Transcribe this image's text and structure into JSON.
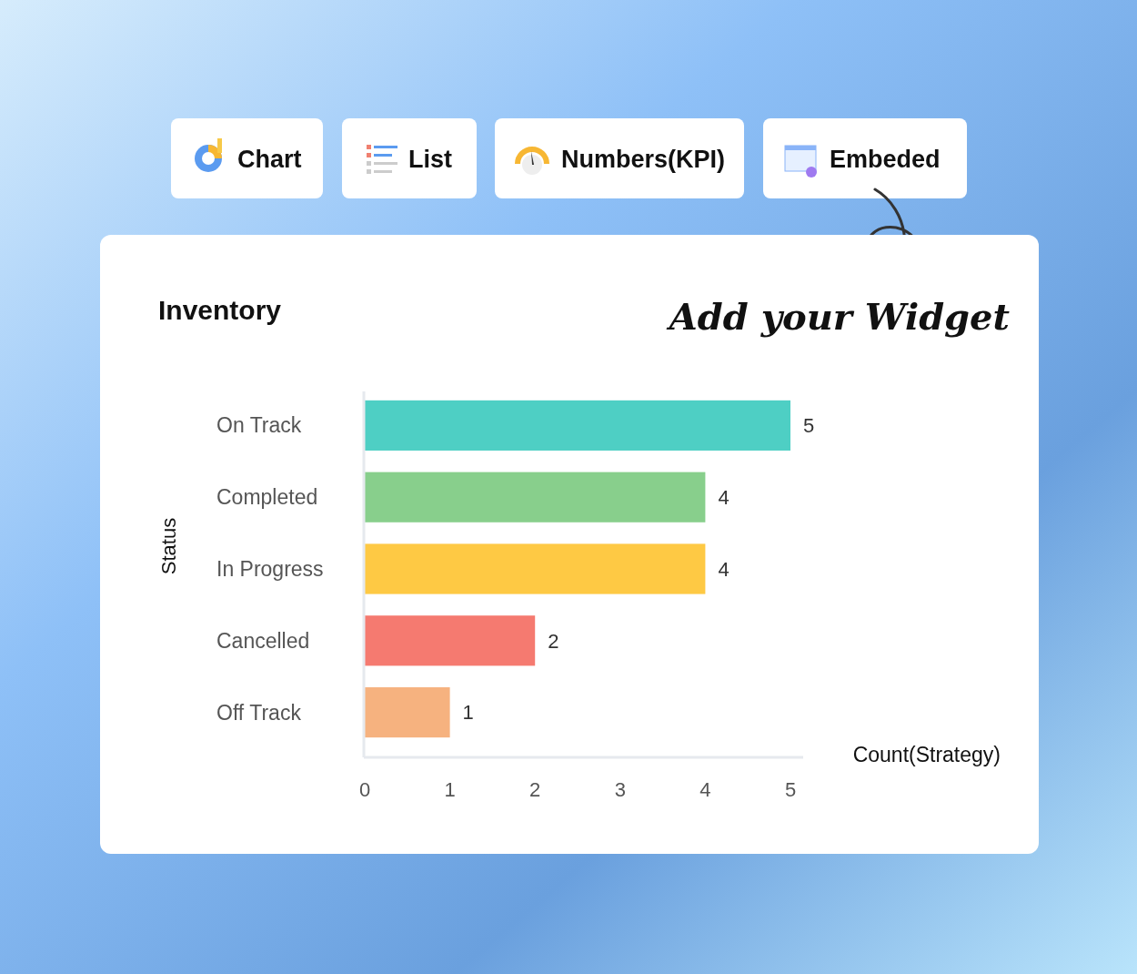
{
  "chart_data": {
    "type": "bar",
    "title": "Inventory",
    "xlabel": "Count(Strategy)",
    "ylabel": "Status",
    "orientation": "horizontal",
    "categories": [
      "On Track",
      "Completed",
      "In Progress",
      "Cancelled",
      "Off Track"
    ],
    "values": [
      5,
      4,
      4,
      2,
      1
    ],
    "colors": [
      "#4ecfc4",
      "#88cf8c",
      "#fec944",
      "#f57a70",
      "#f6b27f"
    ],
    "xlim": [
      0,
      5
    ],
    "xticks": [
      0,
      1,
      2,
      3,
      4,
      5
    ],
    "data_labels": true,
    "annotations": [
      "Chart",
      "List",
      "Numbers(KPI)",
      "Embeded",
      "Add your Widget"
    ]
  }
}
